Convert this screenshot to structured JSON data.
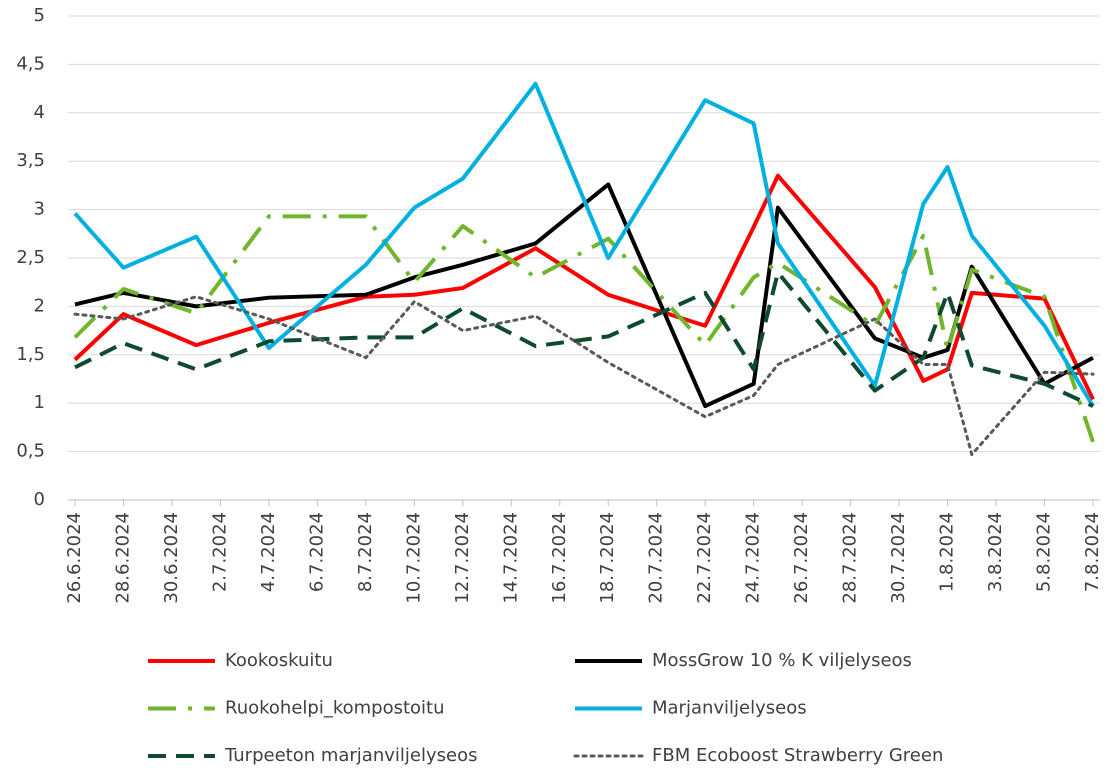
{
  "chart_data": {
    "type": "line",
    "x": [
      "26.6.2024",
      "28.6.2024",
      "1.7.2024",
      "4.7.2024",
      "8.7.2024",
      "10.7.2024",
      "12.7.2024",
      "15.7.2024",
      "18.7.2024",
      "22.7.2024",
      "24.7.2024",
      "25.7.2024",
      "29.7.2024",
      "31.7.2024",
      "1.8.2024",
      "2.8.2024",
      "5.8.2024",
      "7.8.2024"
    ],
    "series": [
      {
        "name": "Kookoskuitu",
        "color": "#ff0000",
        "dash": "solid",
        "values": [
          1.45,
          1.92,
          1.6,
          1.83,
          2.1,
          2.12,
          2.19,
          2.6,
          2.12,
          1.8,
          2.82,
          3.35,
          2.2,
          1.23,
          1.35,
          2.14,
          2.08,
          1.04
        ]
      },
      {
        "name": "MossGrow 10 % K viljelyseos",
        "color": "#000000",
        "dash": "solid",
        "values": [
          2.02,
          2.14,
          2.0,
          2.09,
          2.12,
          2.3,
          2.43,
          2.65,
          3.26,
          0.97,
          1.2,
          3.02,
          1.67,
          1.47,
          1.55,
          2.41,
          1.2,
          1.47
        ]
      },
      {
        "name": "Ruokohelpi_kompostoitu",
        "color": "#70b62c",
        "dash": "longdashdot",
        "values": [
          1.68,
          2.18,
          1.93,
          2.93,
          2.93,
          2.25,
          2.83,
          2.3,
          2.7,
          1.6,
          2.3,
          2.45,
          1.8,
          2.73,
          1.55,
          2.38,
          2.1,
          0.6
        ]
      },
      {
        "name": "Marjanviljelyseos",
        "color": "#00b0e0",
        "dash": "solid",
        "values": [
          2.96,
          2.4,
          2.72,
          1.57,
          2.43,
          3.02,
          3.32,
          4.3,
          2.5,
          4.13,
          3.89,
          2.65,
          1.18,
          3.06,
          3.44,
          2.73,
          1.8,
          0.97
        ]
      },
      {
        "name": "Turpeeton marjanviljelyseos",
        "color": "#0e4a2e",
        "dash": "dash",
        "values": [
          1.37,
          1.62,
          1.35,
          1.64,
          1.68,
          1.68,
          1.98,
          1.59,
          1.69,
          2.14,
          1.35,
          2.35,
          1.13,
          1.47,
          2.14,
          1.39,
          1.2,
          0.97
        ]
      },
      {
        "name": "FBM Ecoboost Strawberry Green",
        "color": "#595959",
        "dash": "dot",
        "values": [
          1.92,
          1.87,
          2.1,
          1.87,
          1.47,
          2.05,
          1.75,
          1.9,
          1.42,
          0.86,
          1.08,
          1.4,
          1.87,
          1.4,
          1.4,
          0.47,
          1.32,
          1.3
        ]
      }
    ],
    "xlim": [
      "26.6.2024",
      "7.8.2024"
    ],
    "xticks": [
      "26.6.2024",
      "28.6.2024",
      "30.6.2024",
      "2.7.2024",
      "4.7.2024",
      "6.7.2024",
      "8.7.2024",
      "10.7.2024",
      "12.7.2024",
      "14.7.2024",
      "16.7.2024",
      "18.7.2024",
      "20.7.2024",
      "22.7.2024",
      "24.7.2024",
      "26.7.2024",
      "28.7.2024",
      "30.7.2024",
      "1.8.2024",
      "3.8.2024",
      "5.8.2024",
      "7.8.2024"
    ],
    "ylim": [
      0,
      5
    ],
    "yticks": [
      0,
      {
        "value": 0.5,
        "label": "0,5"
      },
      1,
      {
        "value": 1.5,
        "label": "1,5"
      },
      2,
      {
        "value": 2.5,
        "label": "2,5"
      },
      3,
      {
        "value": 3.5,
        "label": "3,5"
      },
      4,
      {
        "value": 4.5,
        "label": "4,5"
      },
      5
    ],
    "grid": true,
    "legend": "bottom"
  }
}
